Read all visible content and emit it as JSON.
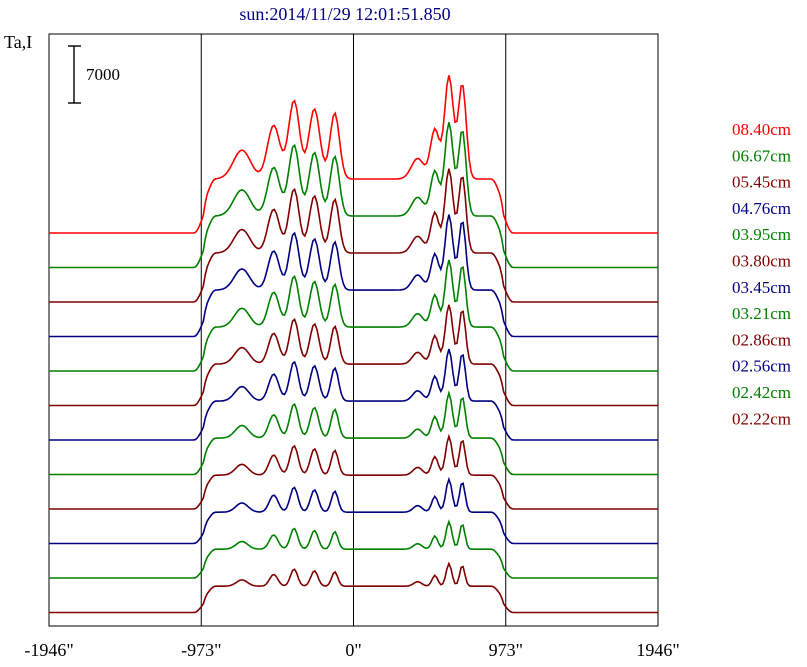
{
  "chart_data": {
    "type": "line",
    "title": "sun:2014/11/29 12:01:51.850",
    "ylabel": "Ta,I",
    "scale_bar": {
      "label": "7000",
      "value": 7000
    },
    "x_ticks": [
      {
        "value": -1946,
        "label": "-1946\""
      },
      {
        "value": -973,
        "label": "-973\""
      },
      {
        "value": 0,
        "label": "0\""
      },
      {
        "value": 973,
        "label": "973\""
      },
      {
        "value": 1946,
        "label": "1946\""
      }
    ],
    "xlim": [
      -1946,
      1946
    ],
    "vertical_lines": [
      -973,
      0,
      973
    ],
    "colors": {
      "red": "#ff0000",
      "green": "#008000",
      "maroon": "#800000",
      "navy": "#000080",
      "title": "#000080"
    },
    "legend_position": "right",
    "series": [
      {
        "name": "08.40cm",
        "color": "#ff0000"
      },
      {
        "name": "06.67cm",
        "color": "#008000"
      },
      {
        "name": "05.45cm",
        "color": "#800000"
      },
      {
        "name": "04.76cm",
        "color": "#000080"
      },
      {
        "name": "03.95cm",
        "color": "#008000"
      },
      {
        "name": "03.80cm",
        "color": "#800000"
      },
      {
        "name": "03.45cm",
        "color": "#000080"
      },
      {
        "name": "03.21cm",
        "color": "#008000"
      },
      {
        "name": "02.86cm",
        "color": "#800000"
      },
      {
        "name": "02.56cm",
        "color": "#000080"
      },
      {
        "name": "02.42cm",
        "color": "#008000"
      },
      {
        "name": "02.22cm",
        "color": "#800000"
      }
    ]
  }
}
